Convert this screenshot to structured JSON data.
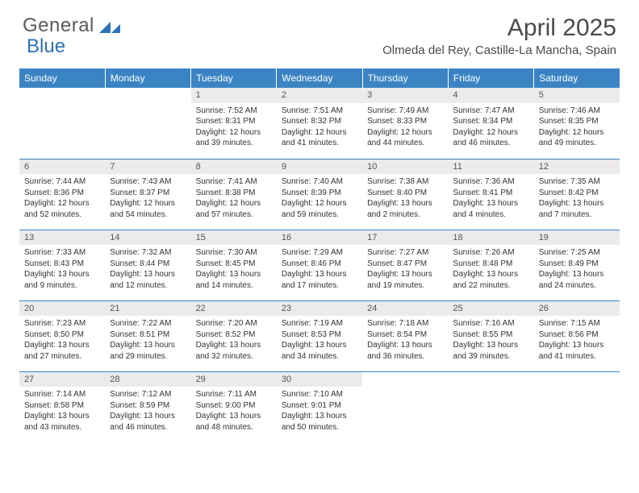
{
  "logo": {
    "text_a": "General",
    "text_b": "Blue"
  },
  "title": "April 2025",
  "location": "Olmeda del Rey, Castille-La Mancha, Spain",
  "header_bg": "#3b84c4",
  "header_fg": "#ffffff",
  "daynum_bg": "#eceaea",
  "border_color": "#3b84c4",
  "day_headers": [
    "Sunday",
    "Monday",
    "Tuesday",
    "Wednesday",
    "Thursday",
    "Friday",
    "Saturday"
  ],
  "weeks": [
    [
      {
        "empty": true
      },
      {
        "empty": true
      },
      {
        "n": "1",
        "sunrise": "7:52 AM",
        "sunset": "8:31 PM",
        "day_h": 12,
        "day_m": 39
      },
      {
        "n": "2",
        "sunrise": "7:51 AM",
        "sunset": "8:32 PM",
        "day_h": 12,
        "day_m": 41
      },
      {
        "n": "3",
        "sunrise": "7:49 AM",
        "sunset": "8:33 PM",
        "day_h": 12,
        "day_m": 44
      },
      {
        "n": "4",
        "sunrise": "7:47 AM",
        "sunset": "8:34 PM",
        "day_h": 12,
        "day_m": 46
      },
      {
        "n": "5",
        "sunrise": "7:46 AM",
        "sunset": "8:35 PM",
        "day_h": 12,
        "day_m": 49
      }
    ],
    [
      {
        "n": "6",
        "sunrise": "7:44 AM",
        "sunset": "8:36 PM",
        "day_h": 12,
        "day_m": 52
      },
      {
        "n": "7",
        "sunrise": "7:43 AM",
        "sunset": "8:37 PM",
        "day_h": 12,
        "day_m": 54
      },
      {
        "n": "8",
        "sunrise": "7:41 AM",
        "sunset": "8:38 PM",
        "day_h": 12,
        "day_m": 57
      },
      {
        "n": "9",
        "sunrise": "7:40 AM",
        "sunset": "8:39 PM",
        "day_h": 12,
        "day_m": 59
      },
      {
        "n": "10",
        "sunrise": "7:38 AM",
        "sunset": "8:40 PM",
        "day_h": 13,
        "day_m": 2
      },
      {
        "n": "11",
        "sunrise": "7:36 AM",
        "sunset": "8:41 PM",
        "day_h": 13,
        "day_m": 4
      },
      {
        "n": "12",
        "sunrise": "7:35 AM",
        "sunset": "8:42 PM",
        "day_h": 13,
        "day_m": 7
      }
    ],
    [
      {
        "n": "13",
        "sunrise": "7:33 AM",
        "sunset": "8:43 PM",
        "day_h": 13,
        "day_m": 9
      },
      {
        "n": "14",
        "sunrise": "7:32 AM",
        "sunset": "8:44 PM",
        "day_h": 13,
        "day_m": 12
      },
      {
        "n": "15",
        "sunrise": "7:30 AM",
        "sunset": "8:45 PM",
        "day_h": 13,
        "day_m": 14
      },
      {
        "n": "16",
        "sunrise": "7:29 AM",
        "sunset": "8:46 PM",
        "day_h": 13,
        "day_m": 17
      },
      {
        "n": "17",
        "sunrise": "7:27 AM",
        "sunset": "8:47 PM",
        "day_h": 13,
        "day_m": 19
      },
      {
        "n": "18",
        "sunrise": "7:26 AM",
        "sunset": "8:48 PM",
        "day_h": 13,
        "day_m": 22
      },
      {
        "n": "19",
        "sunrise": "7:25 AM",
        "sunset": "8:49 PM",
        "day_h": 13,
        "day_m": 24
      }
    ],
    [
      {
        "n": "20",
        "sunrise": "7:23 AM",
        "sunset": "8:50 PM",
        "day_h": 13,
        "day_m": 27
      },
      {
        "n": "21",
        "sunrise": "7:22 AM",
        "sunset": "8:51 PM",
        "day_h": 13,
        "day_m": 29
      },
      {
        "n": "22",
        "sunrise": "7:20 AM",
        "sunset": "8:52 PM",
        "day_h": 13,
        "day_m": 32
      },
      {
        "n": "23",
        "sunrise": "7:19 AM",
        "sunset": "8:53 PM",
        "day_h": 13,
        "day_m": 34
      },
      {
        "n": "24",
        "sunrise": "7:18 AM",
        "sunset": "8:54 PM",
        "day_h": 13,
        "day_m": 36
      },
      {
        "n": "25",
        "sunrise": "7:16 AM",
        "sunset": "8:55 PM",
        "day_h": 13,
        "day_m": 39
      },
      {
        "n": "26",
        "sunrise": "7:15 AM",
        "sunset": "8:56 PM",
        "day_h": 13,
        "day_m": 41
      }
    ],
    [
      {
        "n": "27",
        "sunrise": "7:14 AM",
        "sunset": "8:58 PM",
        "day_h": 13,
        "day_m": 43
      },
      {
        "n": "28",
        "sunrise": "7:12 AM",
        "sunset": "8:59 PM",
        "day_h": 13,
        "day_m": 46
      },
      {
        "n": "29",
        "sunrise": "7:11 AM",
        "sunset": "9:00 PM",
        "day_h": 13,
        "day_m": 48
      },
      {
        "n": "30",
        "sunrise": "7:10 AM",
        "sunset": "9:01 PM",
        "day_h": 13,
        "day_m": 50
      },
      {
        "empty": true
      },
      {
        "empty": true
      },
      {
        "empty": true
      }
    ]
  ]
}
